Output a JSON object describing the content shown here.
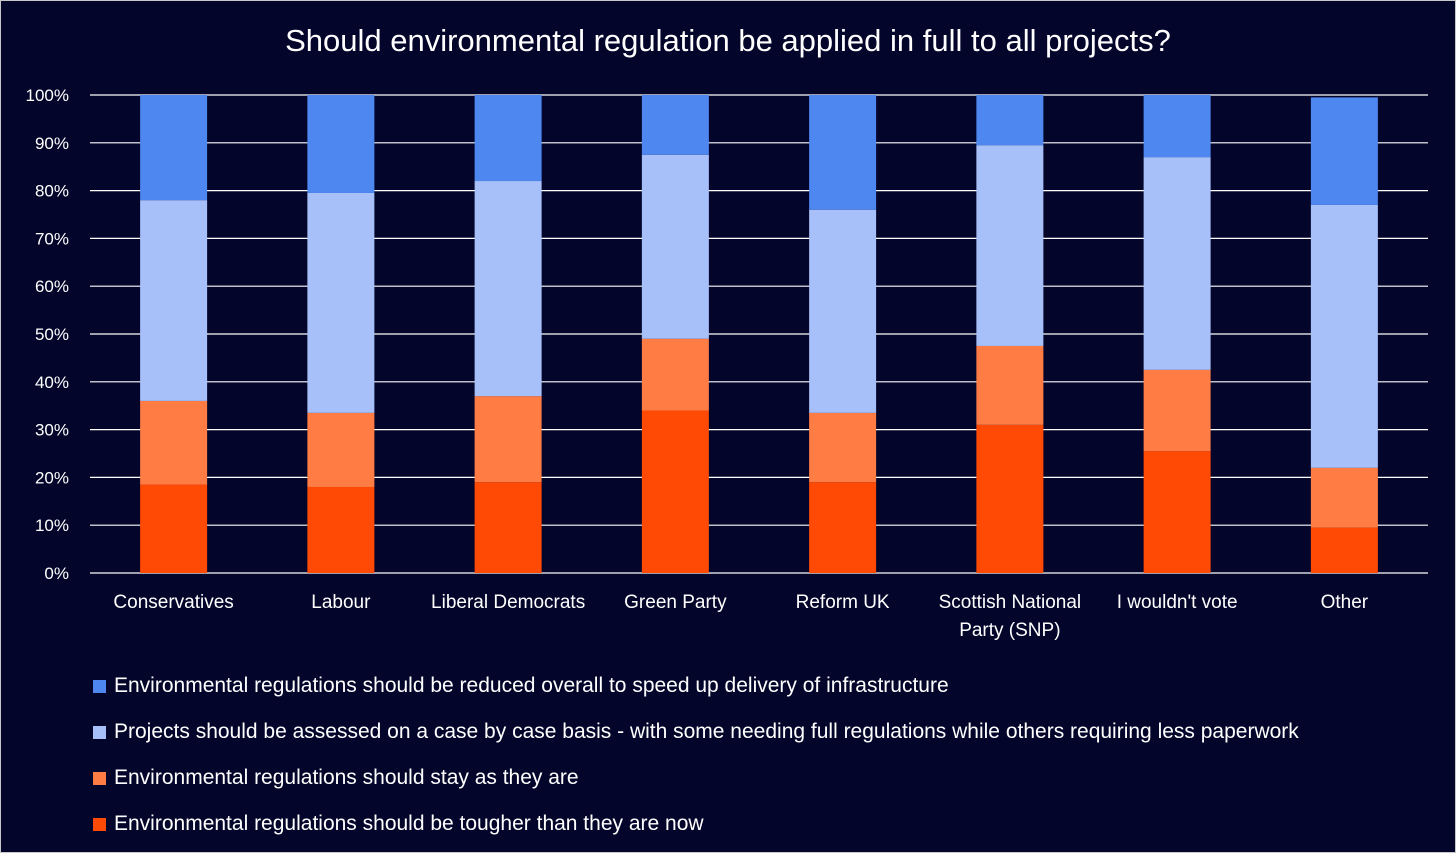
{
  "chart_data": {
    "type": "bar",
    "stacked": true,
    "title": "Should environmental regulation be applied in full to all projects?",
    "xlabel": "",
    "ylabel": "",
    "ylim": [
      0,
      100
    ],
    "y_ticks": [
      "0%",
      "10%",
      "20%",
      "30%",
      "40%",
      "50%",
      "60%",
      "70%",
      "80%",
      "90%",
      "100%"
    ],
    "grid": true,
    "legend_position": "bottom-left",
    "categories": [
      [
        "Conservatives"
      ],
      [
        "Labour"
      ],
      [
        "Liberal Democrats"
      ],
      [
        "Green Party"
      ],
      [
        "Reform UK"
      ],
      [
        "Scottish National",
        "Party (SNP)"
      ],
      [
        "I wouldn't vote"
      ],
      [
        "Other"
      ]
    ],
    "series": [
      {
        "name": "Environmental regulations should be tougher than they are now",
        "color": "#ff4a06",
        "values": [
          18.5,
          18,
          19,
          34,
          19,
          31,
          25.5,
          9.5
        ]
      },
      {
        "name": "Environmental regulations should stay as they are",
        "color": "#ff7d45",
        "values": [
          17.5,
          15.5,
          18,
          15,
          14.5,
          16.5,
          17,
          12.5
        ]
      },
      {
        "name": "Projects should be assessed on a case by case basis - with some needing full regulations while others requiring less paperwork",
        "color": "#a8c0fa",
        "values": [
          42,
          46,
          45,
          38.5,
          42.5,
          42,
          44.5,
          55
        ]
      },
      {
        "name": "Environmental regulations should be reduced overall to speed up delivery of infrastructure",
        "color": "#4f87f0",
        "values": [
          22,
          20.5,
          18,
          12.5,
          24,
          10.5,
          13,
          22.5
        ]
      }
    ]
  },
  "legend": [
    {
      "label": "Environmental regulations should be reduced overall to speed up delivery of infrastructure",
      "color": "#4f87f0"
    },
    {
      "label": "Projects should be assessed on a case by case basis - with some needing full regulations while others requiring less paperwork",
      "color": "#a8c0fa"
    },
    {
      "label": "Environmental regulations should stay as they are",
      "color": "#ff7d45"
    },
    {
      "label": "Environmental regulations should be tougher than they are now",
      "color": "#ff4a06"
    }
  ]
}
